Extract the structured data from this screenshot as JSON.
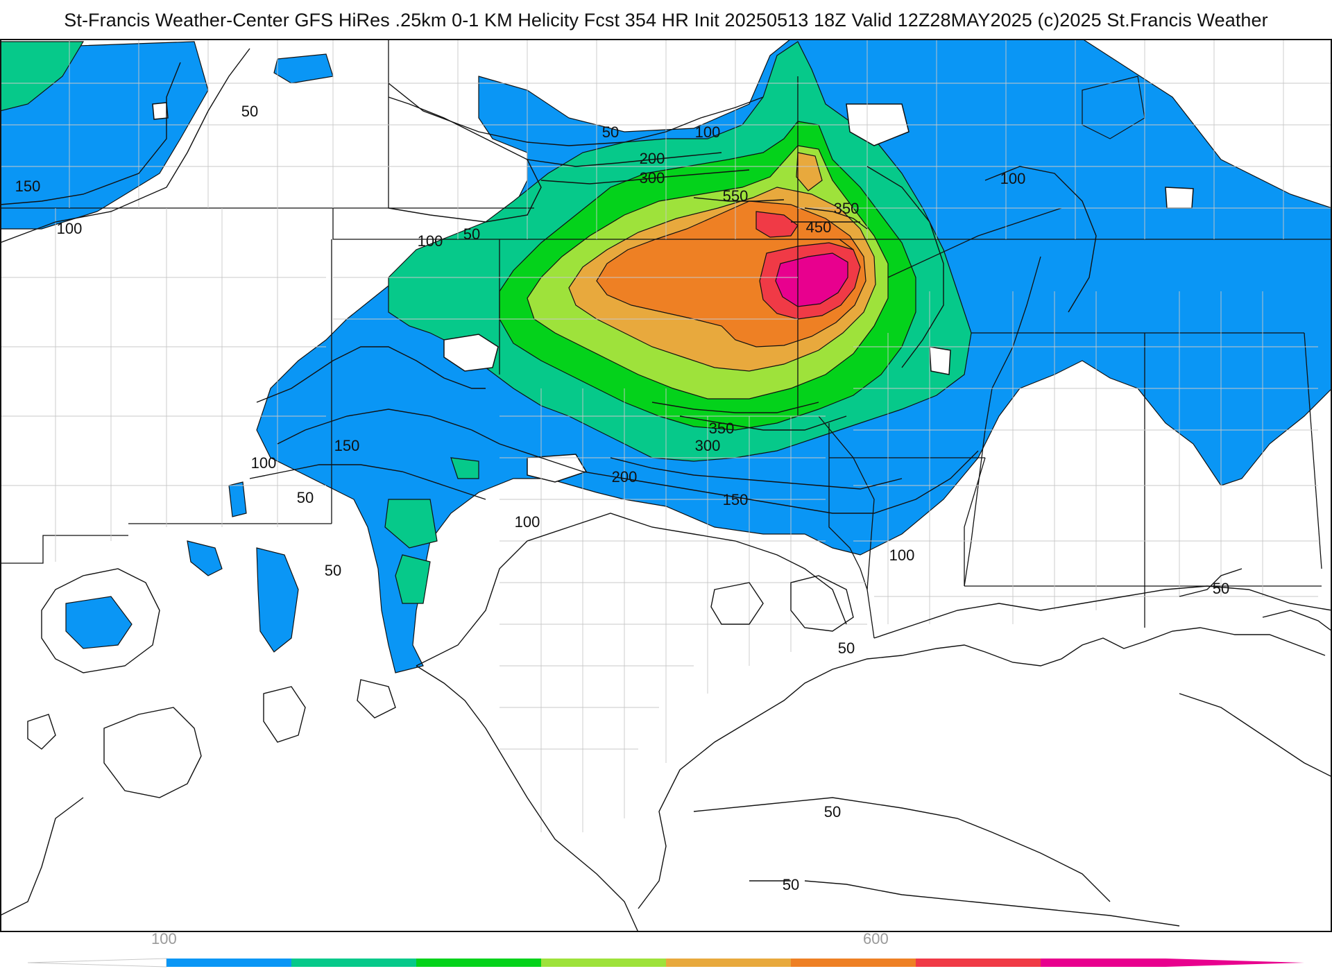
{
  "title": "St-Francis Weather-Center GFS HiRes .25km 0-1 KM Helicity Fcst 354 HR Init 20250513 18Z  Valid 12Z28MAY2025    (c)2025 St.Francis Weather",
  "legend": {
    "ticks": [
      "100",
      "600"
    ],
    "colors": [
      "#0a96f5",
      "#06c98a",
      "#04d21b",
      "#9ee23b",
      "#e8a93d",
      "#ee8024",
      "#f03a46",
      "#e8008e"
    ]
  },
  "contour_labels": [
    "50",
    "100",
    "150",
    "200",
    "300",
    "350",
    "450",
    "550"
  ],
  "fill_colors": {
    "c100": "#0a96f5",
    "c150": "#06c98a",
    "c200": "#04d21b",
    "c300": "#9ee23b",
    "c350": "#e8a93d",
    "c450": "#ee8024",
    "c550": "#f03a46",
    "c600": "#e8008e"
  }
}
